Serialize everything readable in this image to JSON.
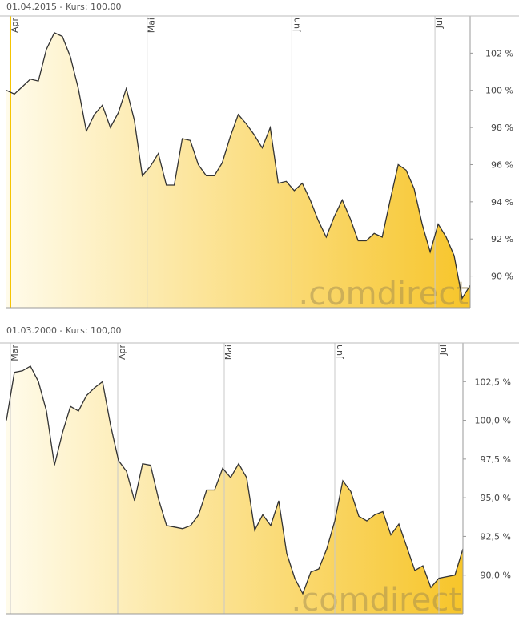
{
  "chart_data": [
    {
      "type": "area",
      "title": "01.04.2015  -  Kurs: 100,00",
      "watermark": ".comdirect",
      "values": [
        100.0,
        99.8,
        100.2,
        100.6,
        100.5,
        102.2,
        103.1,
        102.9,
        101.8,
        100.1,
        97.8,
        98.7,
        99.2,
        98.0,
        98.8,
        100.1,
        98.4,
        95.4,
        95.9,
        96.6,
        94.9,
        94.9,
        97.4,
        97.3,
        96.0,
        95.4,
        95.4,
        96.1,
        97.5,
        98.7,
        98.2,
        97.6,
        96.9,
        98.0,
        95.0,
        95.1,
        94.6,
        95.0,
        94.1,
        93.0,
        92.1,
        93.2,
        94.1,
        93.1,
        91.9,
        91.9,
        92.3,
        92.1,
        94.1,
        96.0,
        95.7,
        94.7,
        92.8,
        91.3,
        92.8,
        92.1,
        91.1,
        88.8,
        89.5
      ],
      "xticks": [
        {
          "value": 0.5,
          "label": "Apr"
        },
        {
          "value": 17.6,
          "label": "Mai"
        },
        {
          "value": 35.7,
          "label": "Jun"
        },
        {
          "value": 53.6,
          "label": "Jul"
        }
      ],
      "ylim": [
        88.3,
        104.0
      ],
      "yticks": [
        {
          "value": 90,
          "label": "90 %"
        },
        {
          "value": 92,
          "label": "92 %"
        },
        {
          "value": 94,
          "label": "94 %"
        },
        {
          "value": 96,
          "label": "96 %"
        },
        {
          "value": 98,
          "label": "98 %"
        },
        {
          "value": 100,
          "label": "100 %"
        },
        {
          "value": 102,
          "label": "102 %"
        }
      ],
      "highlight_first_xtick": true,
      "line_color": "#333333",
      "fill_colors": [
        "#fffbea",
        "#f7c52a"
      ]
    },
    {
      "type": "area",
      "title": "01.03.2000  -  Kurs: 100,00",
      "watermark": ".comdirect",
      "values": [
        100.0,
        103.1,
        103.2,
        103.5,
        102.5,
        100.6,
        97.1,
        99.2,
        100.9,
        100.6,
        101.6,
        102.1,
        102.5,
        99.7,
        97.4,
        96.7,
        94.8,
        97.2,
        97.1,
        94.9,
        93.2,
        93.1,
        93.0,
        93.2,
        93.9,
        95.5,
        95.5,
        96.9,
        96.3,
        97.2,
        96.3,
        92.9,
        93.9,
        93.2,
        94.8,
        91.4,
        89.8,
        88.8,
        90.2,
        90.4,
        91.7,
        93.5,
        96.1,
        95.4,
        93.8,
        93.5,
        93.9,
        94.1,
        92.6,
        93.3,
        91.8,
        90.3,
        90.6,
        89.2,
        89.8,
        89.9,
        90.0,
        91.7
      ],
      "xticks": [
        {
          "value": 0.5,
          "label": "Mar"
        },
        {
          "value": 13.9,
          "label": "Apr"
        },
        {
          "value": 27.2,
          "label": "Mai"
        },
        {
          "value": 41.0,
          "label": "Jun"
        },
        {
          "value": 54.0,
          "label": "Jul"
        }
      ],
      "ylim": [
        87.5,
        105.0
      ],
      "yticks": [
        {
          "value": 90,
          "label": "90,0 %"
        },
        {
          "value": 92.5,
          "label": "92,5 %"
        },
        {
          "value": 95,
          "label": "95,0 %"
        },
        {
          "value": 97.5,
          "label": "97,5 %"
        },
        {
          "value": 100,
          "label": "100,0 %"
        },
        {
          "value": 102.5,
          "label": "102,5 %"
        }
      ],
      "highlight_first_xtick": false,
      "line_color": "#333333",
      "fill_colors": [
        "#fffbea",
        "#f7c52a"
      ]
    }
  ]
}
